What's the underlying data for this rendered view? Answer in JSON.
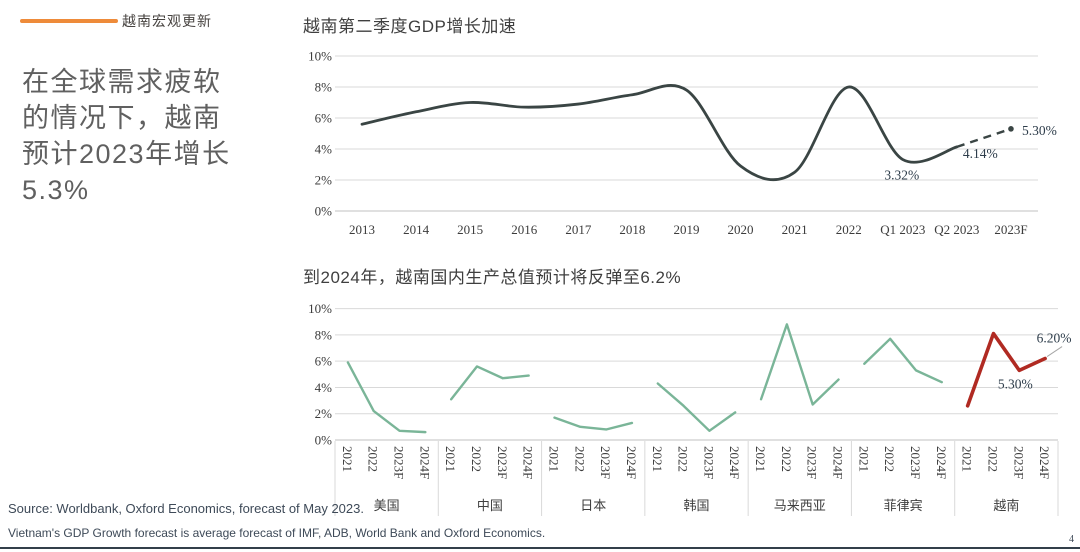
{
  "page": {
    "kicker": "越南宏观更新",
    "headline": "在全球需求疲软\n的情况下，越南\n预计2023年增长\n5.3%",
    "page_number": "4",
    "accent_orange": "#EE8B3A",
    "footer": {
      "line1": "Source: Worldbank, Oxford Economics, forecast of May 2023.",
      "line2": "Vietnam's GDP Growth forecast is average forecast of IMF, ADB, World Bank and Oxford Economics."
    }
  },
  "chart_data": [
    {
      "type": "line",
      "title": "越南第二季度GDP增长加速",
      "categories": [
        "2013",
        "2014",
        "2015",
        "2016",
        "2017",
        "2018",
        "2019",
        "2020",
        "2021",
        "2022",
        "Q1 2023",
        "Q2 2023",
        "2023F"
      ],
      "values": [
        5.6,
        6.4,
        7.0,
        6.7,
        6.9,
        7.5,
        7.8,
        2.9,
        2.5,
        8.0,
        3.32,
        4.14,
        5.3
      ],
      "solid_until_index": 11,
      "smooth": true,
      "grid": true,
      "ylim": [
        0,
        10
      ],
      "yticks": [
        "0%",
        "2%",
        "4%",
        "6%",
        "8%",
        "10%"
      ],
      "line_color": "#3a4544",
      "annotations": [
        {
          "text": "3.32%",
          "index": 10
        },
        {
          "text": "4.14%",
          "index": 11
        },
        {
          "text": "5.30%",
          "index": 12
        }
      ]
    },
    {
      "type": "line",
      "title": "到2024年，越南国内生产总值预计将反弹至6.2%",
      "categories": [
        "2021",
        "2022",
        "2023F",
        "2024F"
      ],
      "smooth": false,
      "grid": true,
      "ylim": [
        0,
        10
      ],
      "yticks": [
        "0%",
        "2%",
        "4%",
        "6%",
        "8%",
        "10%"
      ],
      "series": [
        {
          "name": "美国",
          "values": [
            5.9,
            2.2,
            0.7,
            0.6
          ],
          "color": "#7ab598"
        },
        {
          "name": "中国",
          "values": [
            3.1,
            5.6,
            4.7,
            4.9
          ],
          "color": "#7ab598"
        },
        {
          "name": "日本",
          "values": [
            1.7,
            1.0,
            0.8,
            1.3
          ],
          "color": "#7ab598"
        },
        {
          "name": "韩国",
          "values": [
            4.3,
            2.6,
            0.7,
            2.1
          ],
          "color": "#7ab598"
        },
        {
          "name": "马来西亚",
          "values": [
            3.1,
            8.8,
            2.7,
            4.6
          ],
          "color": "#7ab598"
        },
        {
          "name": "菲律宾",
          "values": [
            5.8,
            7.7,
            5.3,
            4.4
          ],
          "color": "#7ab598"
        },
        {
          "name": "越南",
          "values": [
            2.6,
            8.1,
            5.3,
            6.2
          ],
          "color": "#b02a22"
        }
      ],
      "annotations": [
        {
          "text": "5.30%",
          "series": 6,
          "index": 2
        },
        {
          "text": "6.20%",
          "series": 6,
          "index": 3
        }
      ]
    }
  ]
}
